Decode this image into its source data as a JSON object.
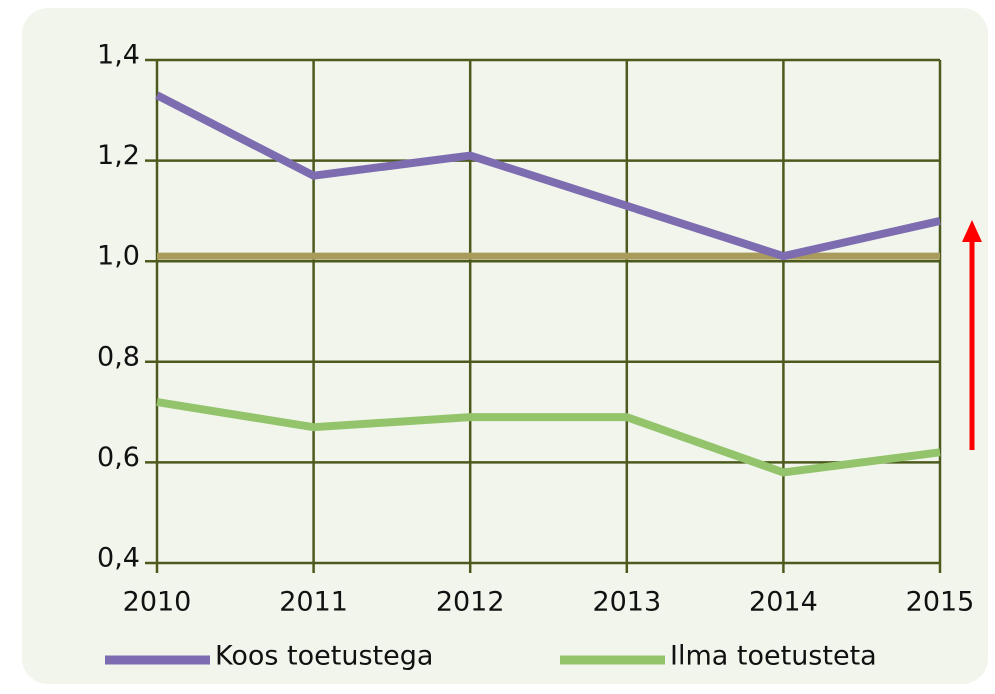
{
  "chart_data": {
    "type": "line",
    "categories": [
      "2010",
      "2011",
      "2012",
      "2013",
      "2014",
      "2015"
    ],
    "series": [
      {
        "name": "Koos toetustega",
        "color": "#7d6cb0",
        "values": [
          1.33,
          1.17,
          1.21,
          1.11,
          1.01,
          1.08
        ]
      },
      {
        "name": "Ilma toetusteta",
        "color": "#93c46c",
        "values": [
          0.72,
          0.67,
          0.69,
          0.69,
          0.58,
          0.62
        ]
      }
    ],
    "reference_line": {
      "value": 1.01,
      "color": "#a99b5c"
    },
    "ylim": [
      0.4,
      1.4
    ],
    "yticks": [
      {
        "value": 0.4,
        "label": "0,4"
      },
      {
        "value": 0.6,
        "label": "0,6"
      },
      {
        "value": 0.8,
        "label": "0,8"
      },
      {
        "value": 1.0,
        "label": "1,0"
      },
      {
        "value": 1.2,
        "label": "1,2"
      },
      {
        "value": 1.4,
        "label": "1,4"
      }
    ],
    "grid": true,
    "legend": "bottom"
  }
}
